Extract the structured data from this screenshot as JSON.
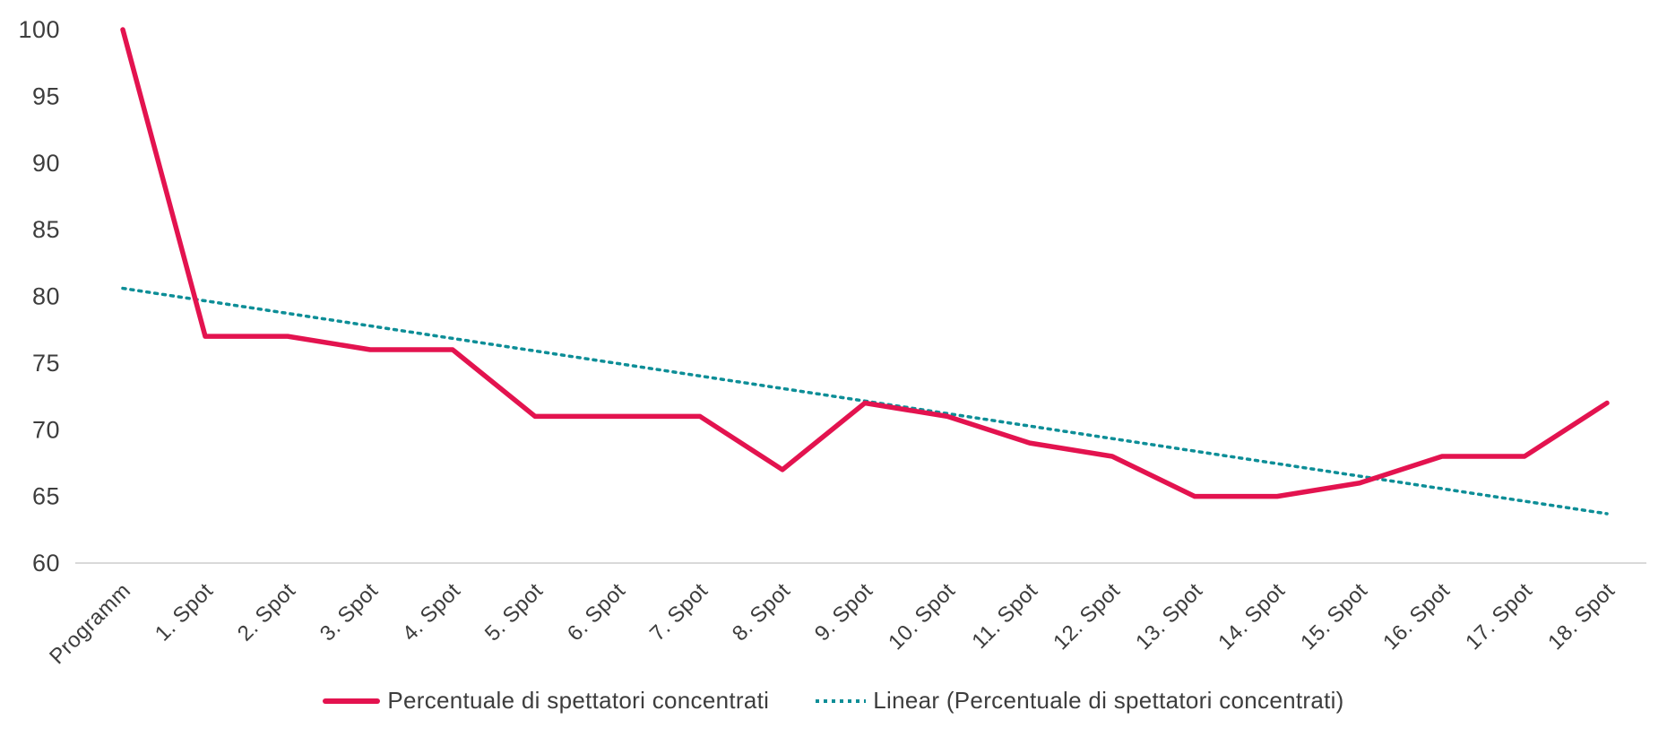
{
  "chart_data": {
    "type": "line",
    "title": "",
    "xlabel": "",
    "ylabel": "",
    "categories": [
      "Programm",
      "1. Spot",
      "2. Spot",
      "3. Spot",
      "4. Spot",
      "5. Spot",
      "6. Spot",
      "7. Spot",
      "8. Spot",
      "9. Spot",
      "10. Spot",
      "11. Spot",
      "12. Spot",
      "13. Spot",
      "14. Spot",
      "15. Spot",
      "16. Spot",
      "17. Spot",
      "18. Spot"
    ],
    "series": [
      {
        "name": "Percentuale di spettatori concentrati",
        "type": "line-solid",
        "color": "#e3134f",
        "values": [
          100,
          77,
          77,
          76,
          76,
          71,
          71,
          71,
          67,
          72,
          71,
          69,
          68,
          65,
          65,
          66,
          68,
          68,
          72
        ]
      },
      {
        "name": "Linear (Percentuale di spettatori concentrati)",
        "type": "trendline-dotted",
        "color": "#0d8e97",
        "trend_start": 80.6,
        "trend_end": 63.7
      }
    ],
    "ylim": [
      60,
      100
    ],
    "yticks": [
      100,
      95,
      90,
      85,
      80,
      75,
      70,
      65,
      60
    ],
    "grid": "off",
    "axis_baseline_only": true,
    "legend_position": "bottom-center"
  },
  "colors": {
    "series_line": "#e3134f",
    "trend_line": "#0d8e97",
    "axis_line": "#d9d9d9",
    "tick_text": "#3d3d3d"
  }
}
